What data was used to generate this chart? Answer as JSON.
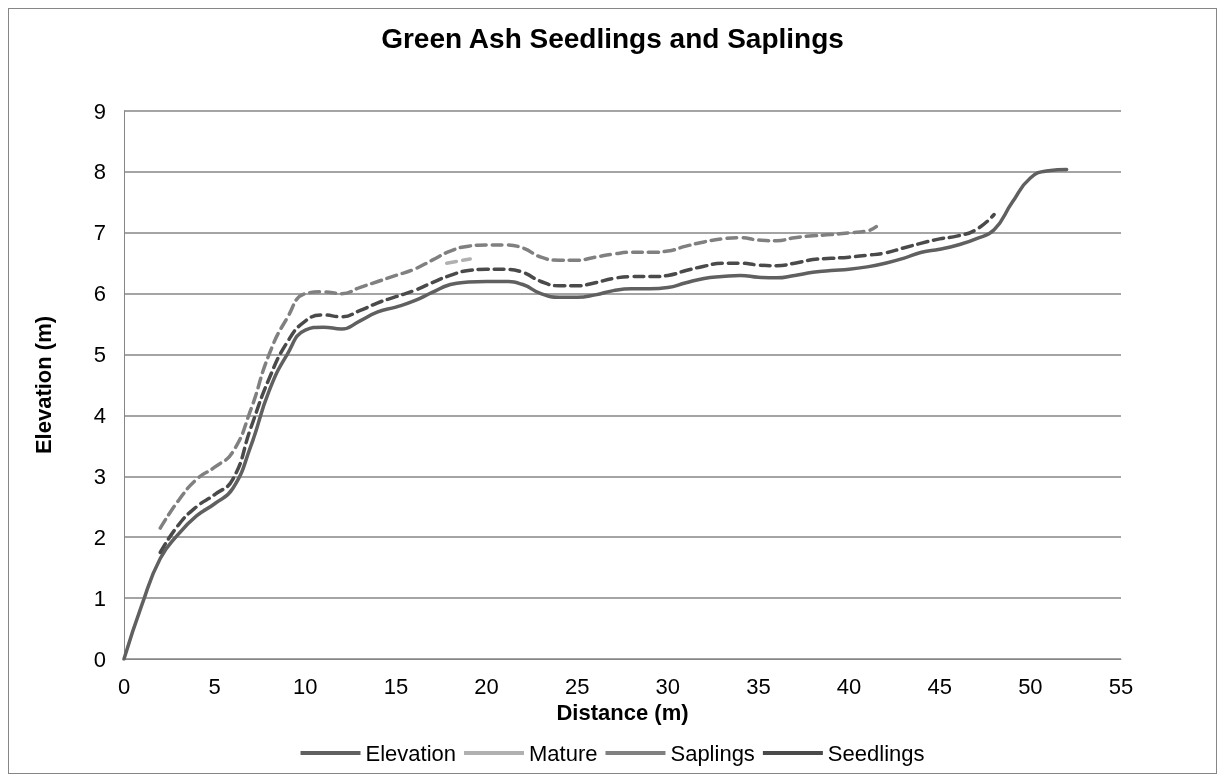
{
  "chart_data": {
    "type": "line",
    "title": "Green Ash Seedlings and Saplings",
    "xlabel": "Distance (m)",
    "ylabel": "Elevation (m)",
    "xlim": [
      0,
      55
    ],
    "xticks": [
      0,
      5,
      10,
      15,
      20,
      25,
      30,
      35,
      40,
      45,
      50,
      55
    ],
    "ylim": [
      0,
      9
    ],
    "yticks": [
      0,
      1,
      2,
      3,
      4,
      5,
      6,
      7,
      8,
      9
    ],
    "grid": "y",
    "legend": "bottom",
    "marker": "none",
    "series": [
      {
        "name": "Elevation",
        "color": "#606060",
        "line_style": "solid",
        "x": [
          0,
          1,
          2,
          3,
          4,
          5,
          6,
          7,
          8,
          9,
          10,
          11,
          12,
          13,
          14,
          15,
          16,
          17,
          18,
          19,
          20,
          21,
          22,
          23,
          24,
          25,
          26,
          27,
          28,
          29,
          30,
          31,
          32,
          33,
          34,
          35,
          36,
          37,
          38,
          39,
          40,
          41,
          42,
          43,
          44,
          45,
          46,
          47,
          48,
          49,
          50,
          51,
          52
        ],
        "values": [
          0,
          0.9,
          1.65,
          2.05,
          2.35,
          2.55,
          2.8,
          3.5,
          4.4,
          5.0,
          5.4,
          5.45,
          5.42,
          5.55,
          5.7,
          5.78,
          5.88,
          6.02,
          6.15,
          6.19,
          6.2,
          6.2,
          6.15,
          6.0,
          5.94,
          5.94,
          5.98,
          6.05,
          6.08,
          6.08,
          6.1,
          6.18,
          6.25,
          6.28,
          6.3,
          6.27,
          6.26,
          6.3,
          6.35,
          6.38,
          6.4,
          6.44,
          6.5,
          6.58,
          6.68,
          6.73,
          6.8,
          6.9,
          7.05,
          7.5,
          7.9,
          8.02,
          8.04
        ]
      },
      {
        "name": "Mature",
        "color": "#b0b0b0",
        "line_style": "dashed",
        "x": [
          17.8,
          19.1
        ],
        "values": [
          6.5,
          6.57
        ]
      },
      {
        "name": "Saplings",
        "color": "#808080",
        "line_style": "dashed",
        "x": [
          2,
          3,
          4,
          5,
          6,
          7,
          8,
          9,
          10,
          11,
          12,
          13,
          14,
          15,
          16,
          17,
          18,
          19,
          20,
          21,
          22,
          23,
          24,
          25,
          26,
          27,
          28,
          29,
          30,
          31,
          32,
          33,
          34,
          35,
          36,
          37,
          38,
          39,
          40,
          41,
          41.5
        ],
        "values": [
          2.15,
          2.6,
          2.95,
          3.15,
          3.4,
          4.1,
          5.0,
          5.6,
          6.0,
          6.03,
          6.0,
          6.1,
          6.2,
          6.3,
          6.4,
          6.55,
          6.7,
          6.78,
          6.8,
          6.8,
          6.75,
          6.6,
          6.55,
          6.55,
          6.6,
          6.65,
          6.68,
          6.68,
          6.7,
          6.78,
          6.85,
          6.9,
          6.92,
          6.88,
          6.87,
          6.92,
          6.95,
          6.97,
          7.0,
          7.03,
          7.1
        ]
      },
      {
        "name": "Seedlings",
        "color": "#4a4a4a",
        "line_style": "dashed",
        "x": [
          2,
          3,
          4,
          5,
          6,
          7,
          8,
          9,
          10,
          11,
          12,
          13,
          14,
          15,
          16,
          17,
          18,
          19,
          20,
          21,
          22,
          23,
          24,
          25,
          26,
          27,
          28,
          29,
          30,
          31,
          32,
          33,
          34,
          35,
          36,
          37,
          38,
          39,
          40,
          41,
          42,
          43,
          44,
          45,
          46,
          47,
          48
        ],
        "values": [
          1.75,
          2.2,
          2.5,
          2.7,
          2.95,
          3.8,
          4.6,
          5.2,
          5.55,
          5.65,
          5.62,
          5.72,
          5.85,
          5.95,
          6.05,
          6.18,
          6.3,
          6.38,
          6.4,
          6.4,
          6.35,
          6.2,
          6.13,
          6.13,
          6.18,
          6.25,
          6.28,
          6.28,
          6.3,
          6.38,
          6.45,
          6.5,
          6.5,
          6.47,
          6.46,
          6.5,
          6.56,
          6.58,
          6.6,
          6.63,
          6.67,
          6.75,
          6.83,
          6.9,
          6.95,
          7.05,
          7.3
        ]
      }
    ]
  }
}
